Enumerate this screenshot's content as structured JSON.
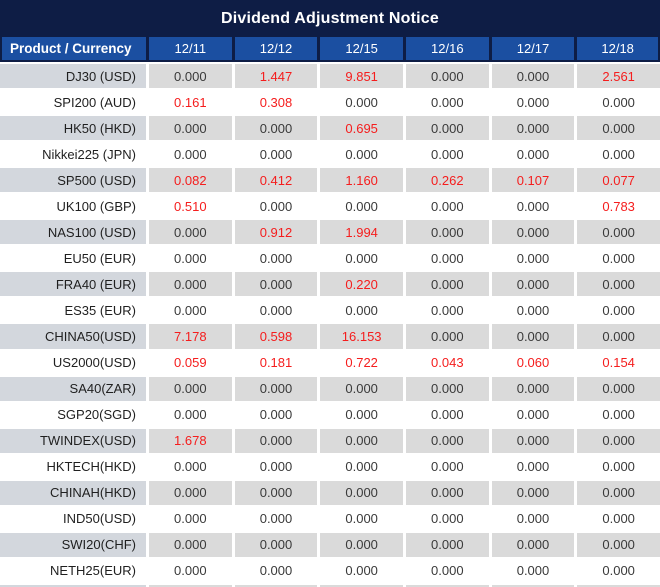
{
  "title": "Dividend Adjustment Notice",
  "table": {
    "corner_header": "Product / Currency",
    "date_headers": [
      "12/11",
      "12/12",
      "12/15",
      "12/16",
      "12/17",
      "12/18"
    ],
    "rows": [
      {
        "product": "DJ30 (USD)",
        "values": [
          "0.000",
          "1.447",
          "9.851",
          "0.000",
          "0.000",
          "2.561"
        ]
      },
      {
        "product": "SPI200 (AUD)",
        "values": [
          "0.161",
          "0.308",
          "0.000",
          "0.000",
          "0.000",
          "0.000"
        ]
      },
      {
        "product": "HK50 (HKD)",
        "values": [
          "0.000",
          "0.000",
          "0.695",
          "0.000",
          "0.000",
          "0.000"
        ]
      },
      {
        "product": "Nikkei225 (JPN)",
        "values": [
          "0.000",
          "0.000",
          "0.000",
          "0.000",
          "0.000",
          "0.000"
        ]
      },
      {
        "product": "SP500 (USD)",
        "values": [
          "0.082",
          "0.412",
          "1.160",
          "0.262",
          "0.107",
          "0.077"
        ]
      },
      {
        "product": "UK100 (GBP)",
        "values": [
          "0.510",
          "0.000",
          "0.000",
          "0.000",
          "0.000",
          "0.783"
        ]
      },
      {
        "product": "NAS100 (USD)",
        "values": [
          "0.000",
          "0.912",
          "1.994",
          "0.000",
          "0.000",
          "0.000"
        ]
      },
      {
        "product": "EU50 (EUR)",
        "values": [
          "0.000",
          "0.000",
          "0.000",
          "0.000",
          "0.000",
          "0.000"
        ]
      },
      {
        "product": "FRA40 (EUR)",
        "values": [
          "0.000",
          "0.000",
          "0.220",
          "0.000",
          "0.000",
          "0.000"
        ]
      },
      {
        "product": "ES35 (EUR)",
        "values": [
          "0.000",
          "0.000",
          "0.000",
          "0.000",
          "0.000",
          "0.000"
        ]
      },
      {
        "product": "CHINA50(USD)",
        "values": [
          "7.178",
          "0.598",
          "16.153",
          "0.000",
          "0.000",
          "0.000"
        ]
      },
      {
        "product": "US2000(USD)",
        "values": [
          "0.059",
          "0.181",
          "0.722",
          "0.043",
          "0.060",
          "0.154"
        ]
      },
      {
        "product": "SA40(ZAR)",
        "values": [
          "0.000",
          "0.000",
          "0.000",
          "0.000",
          "0.000",
          "0.000"
        ]
      },
      {
        "product": "SGP20(SGD)",
        "values": [
          "0.000",
          "0.000",
          "0.000",
          "0.000",
          "0.000",
          "0.000"
        ]
      },
      {
        "product": "TWINDEX(USD)",
        "values": [
          "1.678",
          "0.000",
          "0.000",
          "0.000",
          "0.000",
          "0.000"
        ]
      },
      {
        "product": "HKTECH(HKD)",
        "values": [
          "0.000",
          "0.000",
          "0.000",
          "0.000",
          "0.000",
          "0.000"
        ]
      },
      {
        "product": "CHINAH(HKD)",
        "values": [
          "0.000",
          "0.000",
          "0.000",
          "0.000",
          "0.000",
          "0.000"
        ]
      },
      {
        "product": "IND50(USD)",
        "values": [
          "0.000",
          "0.000",
          "0.000",
          "0.000",
          "0.000",
          "0.000"
        ]
      },
      {
        "product": "SWI20(CHF)",
        "values": [
          "0.000",
          "0.000",
          "0.000",
          "0.000",
          "0.000",
          "0.000"
        ]
      },
      {
        "product": "NETH25(EUR)",
        "values": [
          "0.000",
          "0.000",
          "0.000",
          "0.000",
          "0.000",
          "0.000"
        ]
      }
    ]
  },
  "colors": {
    "frame_navy": "#0e1d45",
    "header_blue": "#1b4fa1",
    "row_gray": "#dadada",
    "product_gray": "#d3d7dd",
    "zero_text": "#3a3a3a",
    "nonzero_red": "#f51d1d"
  }
}
